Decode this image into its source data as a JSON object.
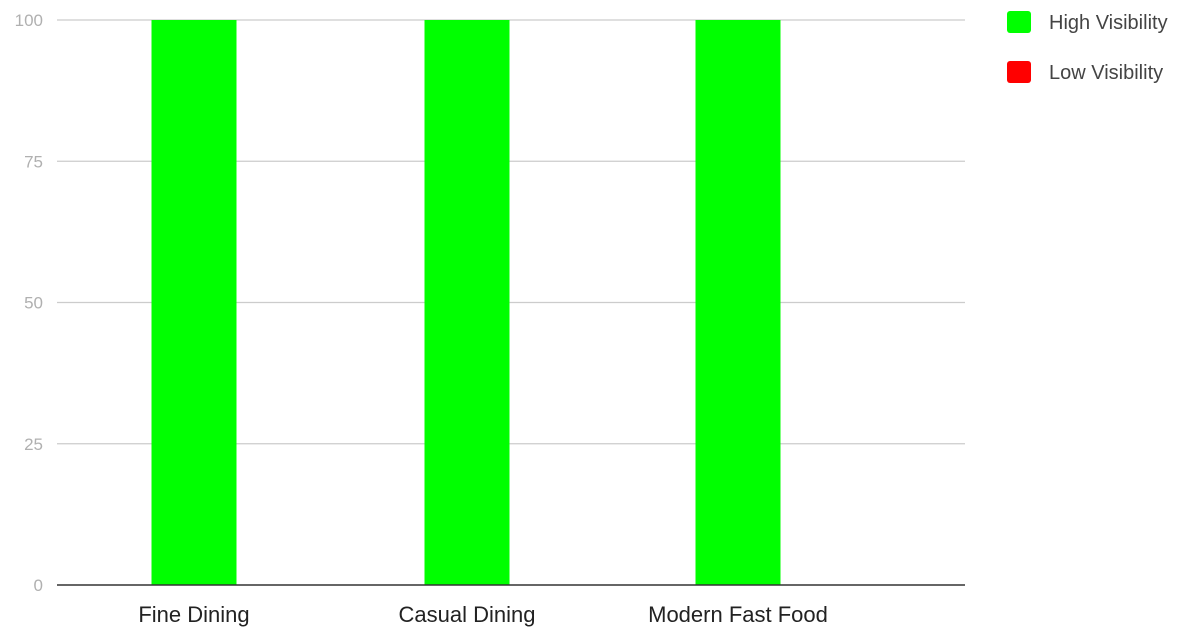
{
  "chart_data": {
    "type": "bar",
    "categories": [
      "Fine Dining",
      "Casual Dining",
      "Modern Fast Food"
    ],
    "series": [
      {
        "name": "High Visibility",
        "color": "#00ff00",
        "values": [
          100,
          100,
          100
        ]
      },
      {
        "name": "Low Visibility",
        "color": "#ff0000",
        "values": [
          0,
          0,
          0
        ]
      }
    ],
    "y_ticks": [
      "0",
      "25",
      "50",
      "75",
      "100"
    ],
    "ylim": [
      0,
      100
    ],
    "grid": true,
    "legend_position": "top-right",
    "stacked": true
  },
  "colors": {
    "gridline": "#cccccc",
    "baseline": "#333333",
    "tick_label": "#b0b0b0",
    "category_label": "#222222",
    "legend_label": "#444444"
  }
}
